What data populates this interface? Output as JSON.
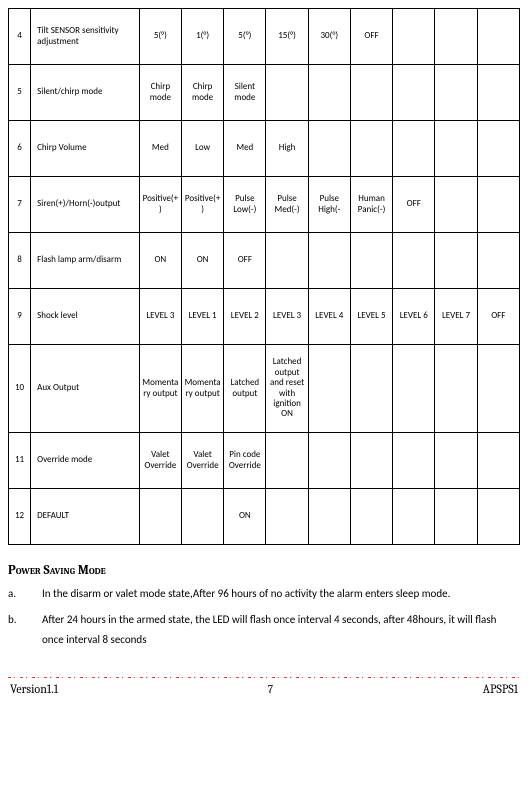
{
  "table": {
    "rows": [
      {
        "num": "4",
        "name": "Tilt SENSOR sensitivity adjustment",
        "opts": [
          "5(°)",
          "1(°)",
          "5(°)",
          "15(°)",
          "30(°)",
          "OFF",
          "",
          "",
          ""
        ]
      },
      {
        "num": "5",
        "name": "Silent/chirp mode",
        "opts": [
          "Chirp mode",
          "Chirp mode",
          "Silent mode",
          "",
          "",
          "",
          "",
          "",
          ""
        ]
      },
      {
        "num": "6",
        "name": "Chirp Volume",
        "opts": [
          "Med",
          "Low",
          "Med",
          "High",
          "",
          "",
          "",
          "",
          ""
        ]
      },
      {
        "num": "7",
        "name": "Siren(+)/Horn(-)output",
        "opts": [
          "Positive(+)",
          "Positive(+)",
          "Pulse Low(-)",
          "Pulse Med(-)",
          "Pulse High(-",
          "Human Panic(-)",
          "OFF",
          "",
          ""
        ]
      },
      {
        "num": "8",
        "name": "Flash lamp arm/disarm",
        "opts": [
          "ON",
          "ON",
          "OFF",
          "",
          "",
          "",
          "",
          "",
          ""
        ]
      },
      {
        "num": "9",
        "name": "Shock level",
        "opts": [
          "LEVEL 3",
          "LEVEL 1",
          "LEVEL 2",
          "LEVEL 3",
          "LEVEL 4",
          "LEVEL 5",
          "LEVEL 6",
          "LEVEL 7",
          "OFF"
        ]
      },
      {
        "num": "10",
        "name": "Aux Output",
        "tall": true,
        "opts": [
          "Momentary output",
          "Momentary output",
          "Latched output",
          "Latched output and reset with ignition ON",
          "",
          "",
          "",
          "",
          ""
        ]
      },
      {
        "num": "11",
        "name": "Override mode",
        "opts": [
          "Valet Override",
          "Valet Override",
          "Pin code Override",
          "",
          "",
          "",
          "",
          "",
          ""
        ]
      },
      {
        "num": "12",
        "name": "DEFAULT",
        "opts": [
          "",
          "",
          "ON",
          "",
          "",
          "",
          "",
          "",
          ""
        ]
      }
    ]
  },
  "section": {
    "title": "Power Saving Mode",
    "items": [
      {
        "marker": "a.",
        "text": "In the disarm or valet mode state,After 96 hours of no activity the alarm enters sleep mode."
      },
      {
        "marker": "b.",
        "text": "After 24 hours in the armed state, the LED will flash once interval 4 seconds, after 48hours, it will flash once interval 8 seconds"
      }
    ]
  },
  "footer": {
    "left": "Version1.1",
    "page": "7",
    "right": "APSPS1"
  }
}
